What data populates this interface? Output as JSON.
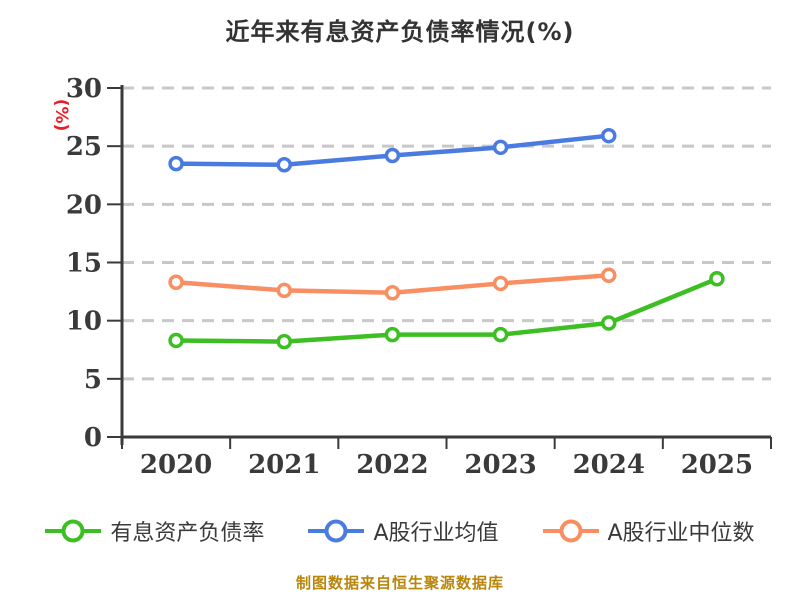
{
  "chart_data": {
    "type": "line",
    "title": "近年来有息资产负债率情况(%)",
    "ylabel_unit": "(%)",
    "categories": [
      "2020",
      "2021",
      "2022",
      "2023",
      "2024",
      "2025"
    ],
    "y_ticks": [
      0,
      5,
      10,
      15,
      20,
      25,
      30
    ],
    "ylim": [
      0,
      30
    ],
    "grid": "horizontal-dashed",
    "legend_position": "bottom",
    "series": [
      {
        "name": "有息资产负债率",
        "color": "#3dbe23",
        "marker": "circle-white-fill",
        "values": [
          8.3,
          8.2,
          8.8,
          8.8,
          9.8,
          13.6
        ]
      },
      {
        "name": "A股行业均值",
        "color": "#4a7be0",
        "marker": "circle-white-fill",
        "values": [
          23.5,
          23.4,
          24.2,
          24.9,
          25.9,
          null
        ]
      },
      {
        "name": "A股行业中位数",
        "color": "#fa8e63",
        "marker": "circle-white-fill",
        "values": [
          13.3,
          12.6,
          12.4,
          13.2,
          13.9,
          null
        ]
      }
    ]
  },
  "footer": {
    "caption": "制图数据来自恒生聚源数据库"
  },
  "colors": {
    "title": "#333333",
    "axis": "#3a3a3a",
    "grid": "#c8c8c8",
    "ylabel_unit": "#ed1c24",
    "caption": "#b8860b",
    "marker_fill": "#ffffff"
  }
}
